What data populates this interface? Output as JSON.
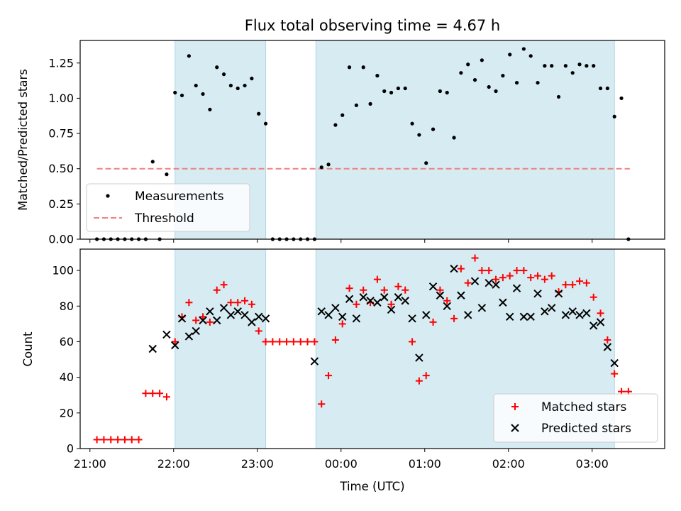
{
  "chart_data": [
    {
      "type": "scatter",
      "title": "Flux total observing time = 4.67 h",
      "xlabel": "",
      "ylabel": "Matched/Predicted stars",
      "xlim": [
        "20:53",
        "27:52"
      ],
      "ylim": [
        0,
        1.41
      ],
      "yticks": [
        "0.00",
        "0.25",
        "0.50",
        "0.75",
        "1.00",
        "1.25"
      ],
      "grid": false,
      "legend_position": "lower-left",
      "legend": [
        "Measurements",
        "Threshold"
      ],
      "shaded_intervals": [
        [
          "22:01",
          "23:06"
        ],
        [
          "23:42",
          "27:16"
        ]
      ],
      "threshold": {
        "name": "Threshold",
        "value": 0.5,
        "x_start": "21:05",
        "x_end": "27:27",
        "color": "#f08080"
      },
      "series": [
        {
          "name": "Measurements",
          "color": "#000000",
          "x": [
            "21:05",
            "21:10",
            "21:15",
            "21:20",
            "21:25",
            "21:30",
            "21:35",
            "21:40",
            "21:45",
            "21:50",
            "21:55",
            "22:01",
            "22:06",
            "22:11",
            "22:16",
            "22:21",
            "22:26",
            "22:31",
            "22:36",
            "22:41",
            "22:46",
            "22:51",
            "22:56",
            "23:01",
            "23:06",
            "23:11",
            "23:16",
            "23:21",
            "23:26",
            "23:31",
            "23:36",
            "23:41",
            "23:46",
            "23:51",
            "23:56",
            "24:01",
            "24:06",
            "24:11",
            "24:16",
            "24:21",
            "24:26",
            "24:31",
            "24:36",
            "24:41",
            "24:46",
            "24:51",
            "24:56",
            "25:01",
            "25:06",
            "25:11",
            "25:16",
            "25:21",
            "25:26",
            "25:31",
            "25:36",
            "25:41",
            "25:46",
            "25:51",
            "25:56",
            "26:01",
            "26:06",
            "26:11",
            "26:16",
            "26:21",
            "26:26",
            "26:31",
            "26:36",
            "26:41",
            "26:46",
            "26:51",
            "26:56",
            "27:01",
            "27:06",
            "27:11",
            "27:16",
            "27:21",
            "27:26"
          ],
          "y": [
            0,
            0,
            0,
            0,
            0,
            0,
            0,
            0,
            0.55,
            0,
            0.46,
            1.04,
            1.02,
            1.3,
            1.09,
            1.03,
            0.92,
            1.22,
            1.17,
            1.09,
            1.07,
            1.09,
            1.14,
            0.89,
            0.82,
            0,
            0,
            0,
            0,
            0,
            0,
            0,
            0.51,
            0.53,
            0.81,
            0.88,
            1.22,
            0.95,
            1.22,
            0.96,
            1.16,
            1.05,
            1.04,
            1.07,
            1.07,
            0.82,
            0.74,
            0.54,
            0.78,
            1.05,
            1.04,
            0.72,
            1.18,
            1.24,
            1.13,
            1.27,
            1.08,
            1.05,
            1.16,
            1.31,
            1.11,
            1.35,
            1.3,
            1.11,
            1.23,
            1.23,
            1.01,
            1.23,
            1.18,
            1.24,
            1.23,
            1.23,
            1.07,
            1.07,
            0.87,
            1.0,
            0
          ]
        }
      ]
    },
    {
      "type": "scatter",
      "title": "",
      "xlabel": "Time (UTC)",
      "ylabel": "Count",
      "xlim": [
        "20:53",
        "27:52"
      ],
      "ylim": [
        0,
        112
      ],
      "yticks": [
        "0",
        "20",
        "40",
        "60",
        "80",
        "100"
      ],
      "xticks": [
        "21:00",
        "22:00",
        "23:00",
        "00:00",
        "01:00",
        "02:00",
        "03:00"
      ],
      "grid": false,
      "legend_position": "lower-right",
      "legend": [
        "Matched stars",
        "Predicted stars"
      ],
      "shaded_intervals": [
        [
          "22:01",
          "23:06"
        ],
        [
          "23:42",
          "27:16"
        ]
      ],
      "series": [
        {
          "name": "Matched stars",
          "marker": "+",
          "color": "#ff0000",
          "x": [
            "21:05",
            "21:10",
            "21:15",
            "21:20",
            "21:25",
            "21:30",
            "21:35",
            "21:40",
            "21:45",
            "21:50",
            "21:55",
            "22:01",
            "22:06",
            "22:11",
            "22:16",
            "22:21",
            "22:26",
            "22:31",
            "22:36",
            "22:41",
            "22:46",
            "22:51",
            "22:56",
            "23:01",
            "23:06",
            "23:11",
            "23:16",
            "23:21",
            "23:26",
            "23:31",
            "23:36",
            "23:41",
            "23:46",
            "23:51",
            "23:56",
            "24:01",
            "24:06",
            "24:11",
            "24:16",
            "24:21",
            "24:26",
            "24:31",
            "24:36",
            "24:41",
            "24:46",
            "24:51",
            "24:56",
            "25:01",
            "25:06",
            "25:11",
            "25:16",
            "25:21",
            "25:26",
            "25:31",
            "25:36",
            "25:41",
            "25:46",
            "25:51",
            "25:56",
            "26:01",
            "26:06",
            "26:11",
            "26:16",
            "26:21",
            "26:26",
            "26:31",
            "26:36",
            "26:41",
            "26:46",
            "26:51",
            "26:56",
            "27:01",
            "27:06",
            "27:11",
            "27:16",
            "27:21",
            "27:26"
          ],
          "y": [
            5,
            5,
            5,
            5,
            5,
            5,
            5,
            31,
            31,
            31,
            29,
            60,
            74,
            82,
            72,
            74,
            71,
            89,
            92,
            82,
            82,
            83,
            81,
            66,
            60,
            60,
            60,
            60,
            60,
            60,
            60,
            60,
            25,
            41,
            61,
            70,
            90,
            81,
            89,
            82,
            95,
            89,
            81,
            91,
            89,
            60,
            38,
            41,
            71,
            89,
            83,
            73,
            101,
            93,
            107,
            100,
            100,
            95,
            96,
            97,
            100,
            100,
            96,
            97,
            95,
            97,
            88,
            92,
            92,
            94,
            93,
            85,
            76,
            61,
            42,
            32,
            32
          ]
        },
        {
          "name": "Predicted stars",
          "marker": "x",
          "color": "#000000",
          "x": [
            "21:45",
            "21:55",
            "22:01",
            "22:06",
            "22:11",
            "22:16",
            "22:21",
            "22:26",
            "22:31",
            "22:36",
            "22:41",
            "22:46",
            "22:51",
            "22:56",
            "23:01",
            "23:06",
            "23:41",
            "23:46",
            "23:51",
            "23:56",
            "24:01",
            "24:06",
            "24:11",
            "24:16",
            "24:21",
            "24:26",
            "24:31",
            "24:36",
            "24:41",
            "24:46",
            "24:51",
            "24:56",
            "25:01",
            "25:06",
            "25:11",
            "25:16",
            "25:21",
            "25:26",
            "25:31",
            "25:36",
            "25:41",
            "25:46",
            "25:51",
            "25:56",
            "26:01",
            "26:06",
            "26:11",
            "26:16",
            "26:21",
            "26:26",
            "26:31",
            "26:36",
            "26:41",
            "26:46",
            "26:51",
            "26:56",
            "27:01",
            "27:06",
            "27:11",
            "27:16"
          ],
          "y": [
            56,
            64,
            58,
            73,
            63,
            66,
            72,
            77,
            72,
            79,
            75,
            77,
            75,
            71,
            74,
            73,
            49,
            77,
            75,
            79,
            74,
            84,
            73,
            85,
            83,
            82,
            85,
            78,
            85,
            83,
            73,
            51,
            75,
            91,
            86,
            80,
            101,
            86,
            75,
            94,
            79,
            93,
            92,
            82,
            74,
            90,
            74,
            74,
            87,
            77,
            79,
            87,
            75,
            77,
            75,
            76,
            69,
            71,
            57,
            48
          ]
        }
      ]
    }
  ]
}
